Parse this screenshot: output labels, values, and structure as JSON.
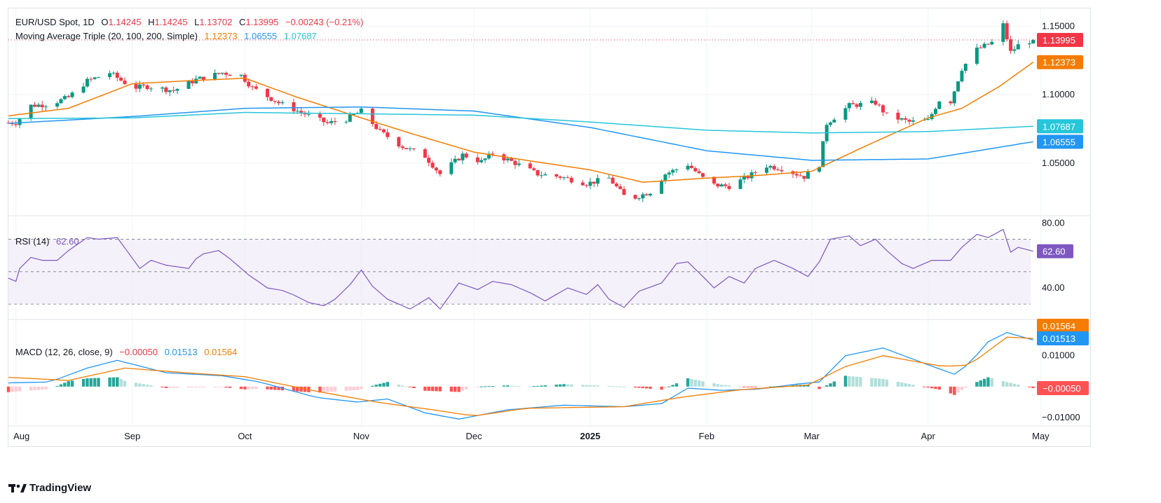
{
  "header": {
    "symbol": "EUR/USD Spot, 1D",
    "o_label": "O",
    "o": "1.14245",
    "h_label": "H",
    "h": "1.14245",
    "l_label": "L",
    "l": "1.13702",
    "c_label": "C",
    "c": "1.13995",
    "change": "−0.00243 (−0.21%)"
  },
  "ma_legend": {
    "label": "Moving Average Triple (20, 100, 200, Simple)",
    "v20": "1.12373",
    "v100": "1.06555",
    "v200": "1.07687"
  },
  "rsi_legend": {
    "label": "RSI (14)",
    "value": "62.60"
  },
  "macd_legend": {
    "label": "MACD (12, 26, close, 9)",
    "hist": "−0.00050",
    "macd": "0.01513",
    "signal": "0.01564"
  },
  "brand": "TradingView",
  "colors": {
    "up": "#089981",
    "down": "#f23645",
    "ma20": "#f57c00",
    "ma100": "#2196f3",
    "ma200": "#26c6da",
    "rsi": "#7e57c2",
    "macd": "#2196f3",
    "signal": "#f57c00",
    "hist_up": "#26a69a",
    "hist_up_weak": "#b2dfdb",
    "hist_down": "#ff5252",
    "hist_down_weak": "#ffcdd2"
  },
  "chart_data": [
    {
      "type": "candlestick",
      "title": "EUR/USD Spot, 1D",
      "x_ticks": [
        "Aug",
        "Sep",
        "Oct",
        "Nov",
        "Dec",
        "2025",
        "Feb",
        "Mar",
        "Apr",
        "May"
      ],
      "x_range": [
        "2024-07-30",
        "2025-05-14"
      ],
      "ylim": [
        1.012,
        1.163
      ],
      "y_ticks": [
        "1.15000",
        "1.10000",
        "1.05000"
      ],
      "last_price": 1.13995,
      "price_tags": [
        "1.13995",
        "1.12373",
        "1.07687",
        "1.06555"
      ],
      "price_keypoints": [
        [
          "2024-08-01",
          1.0795
        ],
        [
          "2024-08-05",
          1.092
        ],
        [
          "2024-08-10",
          1.093
        ],
        [
          "2024-08-15",
          1.098
        ],
        [
          "2024-08-20",
          1.11
        ],
        [
          "2024-08-26",
          1.116
        ],
        [
          "2024-09-01",
          1.105
        ],
        [
          "2024-09-05",
          1.106
        ],
        [
          "2024-09-12",
          1.103
        ],
        [
          "2024-09-18",
          1.111
        ],
        [
          "2024-09-25",
          1.116
        ],
        [
          "2024-09-30",
          1.114
        ],
        [
          "2024-10-03",
          1.105
        ],
        [
          "2024-10-10",
          1.094
        ],
        [
          "2024-10-16",
          1.087
        ],
        [
          "2024-10-23",
          1.079
        ],
        [
          "2024-10-28",
          1.082
        ],
        [
          "2024-11-01",
          1.088
        ],
        [
          "2024-11-06",
          1.073
        ],
        [
          "2024-11-12",
          1.062
        ],
        [
          "2024-11-18",
          1.055
        ],
        [
          "2024-11-22",
          1.042
        ],
        [
          "2024-11-28",
          1.056
        ],
        [
          "2024-12-03",
          1.051
        ],
        [
          "2024-12-06",
          1.057
        ],
        [
          "2024-12-12",
          1.05
        ],
        [
          "2024-12-18",
          1.042
        ],
        [
          "2024-12-24",
          1.04
        ],
        [
          "2024-12-31",
          1.035
        ],
        [
          "2025-01-06",
          1.039
        ],
        [
          "2025-01-10",
          1.026
        ],
        [
          "2025-01-13",
          1.025
        ],
        [
          "2025-01-17",
          1.029
        ],
        [
          "2025-01-21",
          1.042
        ],
        [
          "2025-01-27",
          1.049
        ],
        [
          "2025-01-31",
          1.039
        ],
        [
          "2025-02-03",
          1.034
        ],
        [
          "2025-02-07",
          1.033
        ],
        [
          "2025-02-12",
          1.04
        ],
        [
          "2025-02-17",
          1.048
        ],
        [
          "2025-02-21",
          1.046
        ],
        [
          "2025-02-27",
          1.04
        ],
        [
          "2025-03-03",
          1.049
        ],
        [
          "2025-03-05",
          1.079
        ],
        [
          "2025-03-11",
          1.092
        ],
        [
          "2025-03-18",
          1.094
        ],
        [
          "2025-03-21",
          1.085
        ],
        [
          "2025-03-27",
          1.08
        ],
        [
          "2025-04-01",
          1.081
        ],
        [
          "2025-04-04",
          1.096
        ],
        [
          "2025-04-07",
          1.095
        ],
        [
          "2025-04-10",
          1.119
        ],
        [
          "2025-04-14",
          1.133
        ],
        [
          "2025-04-18",
          1.138
        ],
        [
          "2025-04-21",
          1.151
        ],
        [
          "2025-04-23",
          1.131
        ],
        [
          "2025-04-25",
          1.136
        ],
        [
          "2025-04-29",
          1.14
        ]
      ],
      "series": [
        {
          "name": "20",
          "keypoints": [
            [
              "2024-07-30",
              1.0845
            ],
            [
              "2024-08-15",
              1.09
            ],
            [
              "2024-09-01",
              1.108
            ],
            [
              "2024-09-15",
              1.11
            ],
            [
              "2024-10-01",
              1.112
            ],
            [
              "2024-10-15",
              1.098
            ],
            [
              "2024-11-01",
              1.083
            ],
            [
              "2024-11-15",
              1.071
            ],
            [
              "2024-12-01",
              1.058
            ],
            [
              "2024-12-15",
              1.052
            ],
            [
              "2025-01-01",
              1.045
            ],
            [
              "2025-01-15",
              1.036
            ],
            [
              "2025-02-01",
              1.039
            ],
            [
              "2025-02-15",
              1.041
            ],
            [
              "2025-03-01",
              1.044
            ],
            [
              "2025-03-15",
              1.062
            ],
            [
              "2025-04-01",
              1.083
            ],
            [
              "2025-04-10",
              1.09
            ],
            [
              "2025-04-20",
              1.106
            ],
            [
              "2025-04-29",
              1.1237
            ]
          ]
        },
        {
          "name": "100",
          "keypoints": [
            [
              "2024-07-30",
              1.079
            ],
            [
              "2024-09-01",
              1.084
            ],
            [
              "2024-10-01",
              1.09
            ],
            [
              "2024-11-01",
              1.091
            ],
            [
              "2024-12-01",
              1.088
            ],
            [
              "2025-01-01",
              1.076
            ],
            [
              "2025-02-01",
              1.059
            ],
            [
              "2025-03-01",
              1.052
            ],
            [
              "2025-04-01",
              1.053
            ],
            [
              "2025-04-29",
              1.0656
            ]
          ]
        },
        {
          "name": "200",
          "keypoints": [
            [
              "2024-07-30",
              1.0825
            ],
            [
              "2024-09-01",
              1.083
            ],
            [
              "2024-10-01",
              1.087
            ],
            [
              "2024-11-01",
              1.086
            ],
            [
              "2024-12-01",
              1.085
            ],
            [
              "2025-01-01",
              1.08
            ],
            [
              "2025-02-01",
              1.074
            ],
            [
              "2025-03-01",
              1.072
            ],
            [
              "2025-04-01",
              1.073
            ],
            [
              "2025-04-29",
              1.0769
            ]
          ]
        }
      ]
    },
    {
      "type": "line",
      "title": "RSI (14)",
      "ylim": [
        21,
        84
      ],
      "y_ticks": [
        "80.00",
        "40.00"
      ],
      "bands": [
        70,
        50,
        30
      ],
      "last_value": 62.6,
      "keypoints": [
        [
          "2024-07-30",
          46
        ],
        [
          "2024-08-01",
          44
        ],
        [
          "2024-08-03",
          60
        ],
        [
          "2024-08-08",
          57
        ],
        [
          "2024-08-12",
          57
        ],
        [
          "2024-08-15",
          63
        ],
        [
          "2024-08-20",
          71
        ],
        [
          "2024-08-23",
          70
        ],
        [
          "2024-08-28",
          71
        ],
        [
          "2024-09-03",
          52
        ],
        [
          "2024-09-06",
          57
        ],
        [
          "2024-09-10",
          54
        ],
        [
          "2024-09-16",
          52
        ],
        [
          "2024-09-18",
          58
        ],
        [
          "2024-09-20",
          61
        ],
        [
          "2024-09-24",
          63
        ],
        [
          "2024-09-27",
          58
        ],
        [
          "2024-10-02",
          48
        ],
        [
          "2024-10-07",
          40
        ],
        [
          "2024-10-12",
          38
        ],
        [
          "2024-10-18",
          31
        ],
        [
          "2024-10-22",
          29
        ],
        [
          "2024-10-25",
          33
        ],
        [
          "2024-10-29",
          42
        ],
        [
          "2024-11-01",
          51
        ],
        [
          "2024-11-04",
          41
        ],
        [
          "2024-11-08",
          33
        ],
        [
          "2024-11-14",
          27
        ],
        [
          "2024-11-19",
          34
        ],
        [
          "2024-11-22",
          27
        ],
        [
          "2024-11-27",
          43
        ],
        [
          "2024-12-02",
          39
        ],
        [
          "2024-12-06",
          44
        ],
        [
          "2024-12-11",
          42
        ],
        [
          "2024-12-16",
          37
        ],
        [
          "2024-12-20",
          32
        ],
        [
          "2024-12-26",
          40
        ],
        [
          "2024-12-31",
          36
        ],
        [
          "2025-01-03",
          42
        ],
        [
          "2025-01-06",
          33
        ],
        [
          "2025-01-10",
          28
        ],
        [
          "2025-01-14",
          38
        ],
        [
          "2025-01-20",
          43
        ],
        [
          "2025-01-24",
          55
        ],
        [
          "2025-01-27",
          56
        ],
        [
          "2025-01-31",
          47
        ],
        [
          "2025-02-03",
          40
        ],
        [
          "2025-02-07",
          47
        ],
        [
          "2025-02-11",
          43
        ],
        [
          "2025-02-14",
          52
        ],
        [
          "2025-02-19",
          57
        ],
        [
          "2025-02-24",
          52
        ],
        [
          "2025-02-28",
          47
        ],
        [
          "2025-03-03",
          56
        ],
        [
          "2025-03-06",
          70
        ],
        [
          "2025-03-11",
          72
        ],
        [
          "2025-03-14",
          66
        ],
        [
          "2025-03-18",
          70
        ],
        [
          "2025-03-21",
          63
        ],
        [
          "2025-03-25",
          55
        ],
        [
          "2025-03-28",
          52
        ],
        [
          "2025-04-02",
          57
        ],
        [
          "2025-04-07",
          57
        ],
        [
          "2025-04-10",
          65
        ],
        [
          "2025-04-14",
          73
        ],
        [
          "2025-04-17",
          71
        ],
        [
          "2025-04-21",
          76
        ],
        [
          "2025-04-23",
          62
        ],
        [
          "2025-04-25",
          65
        ],
        [
          "2025-04-29",
          62.6
        ]
      ]
    },
    {
      "type": "line",
      "title": "MACD (12, 26, close, 9)",
      "ylim": [
        -0.0125,
        0.0215
      ],
      "y_ticks": [
        "0.01000",
        "−0.01000"
      ],
      "series": [
        {
          "name": "MACD",
          "keypoints": [
            [
              "2024-07-30",
              0.0012
            ],
            [
              "2024-08-10",
              0.0015
            ],
            [
              "2024-08-20",
              0.006
            ],
            [
              "2024-08-28",
              0.0085
            ],
            [
              "2024-09-10",
              0.0045
            ],
            [
              "2024-09-25",
              0.0035
            ],
            [
              "2024-10-05",
              0.0015
            ],
            [
              "2024-10-20",
              -0.0035
            ],
            [
              "2024-10-31",
              -0.005
            ],
            [
              "2024-11-08",
              -0.004
            ],
            [
              "2024-11-18",
              -0.0085
            ],
            [
              "2024-11-27",
              -0.0105
            ],
            [
              "2024-12-10",
              -0.0075
            ],
            [
              "2024-12-25",
              -0.006
            ],
            [
              "2025-01-10",
              -0.0065
            ],
            [
              "2025-01-20",
              -0.0055
            ],
            [
              "2025-01-27",
              -0.0005
            ],
            [
              "2025-02-05",
              -0.0012
            ],
            [
              "2025-02-15",
              -0.0008
            ],
            [
              "2025-02-25",
              0.0008
            ],
            [
              "2025-03-03",
              0.0015
            ],
            [
              "2025-03-10",
              0.01
            ],
            [
              "2025-03-20",
              0.0125
            ],
            [
              "2025-03-31",
              0.0075
            ],
            [
              "2025-04-08",
              0.004
            ],
            [
              "2025-04-12",
              0.0075
            ],
            [
              "2025-04-17",
              0.0145
            ],
            [
              "2025-04-22",
              0.0175
            ],
            [
              "2025-04-29",
              0.0151
            ]
          ]
        },
        {
          "name": "Signal",
          "keypoints": [
            [
              "2024-07-30",
              0.003
            ],
            [
              "2024-08-15",
              0.002
            ],
            [
              "2024-08-30",
              0.006
            ],
            [
              "2024-09-15",
              0.0045
            ],
            [
              "2024-10-01",
              0.0032
            ],
            [
              "2024-10-20",
              -0.0015
            ],
            [
              "2024-11-05",
              -0.005
            ],
            [
              "2024-11-20",
              -0.0075
            ],
            [
              "2024-12-01",
              -0.0095
            ],
            [
              "2024-12-15",
              -0.007
            ],
            [
              "2025-01-10",
              -0.0065
            ],
            [
              "2025-01-25",
              -0.0035
            ],
            [
              "2025-02-10",
              -0.001
            ],
            [
              "2025-02-28",
              0.0005
            ],
            [
              "2025-03-10",
              0.0065
            ],
            [
              "2025-03-20",
              0.01
            ],
            [
              "2025-04-05",
              0.0065
            ],
            [
              "2025-04-12",
              0.007
            ],
            [
              "2025-04-22",
              0.016
            ],
            [
              "2025-04-29",
              0.0156
            ]
          ]
        }
      ],
      "histogram_last": -0.0005
    }
  ]
}
